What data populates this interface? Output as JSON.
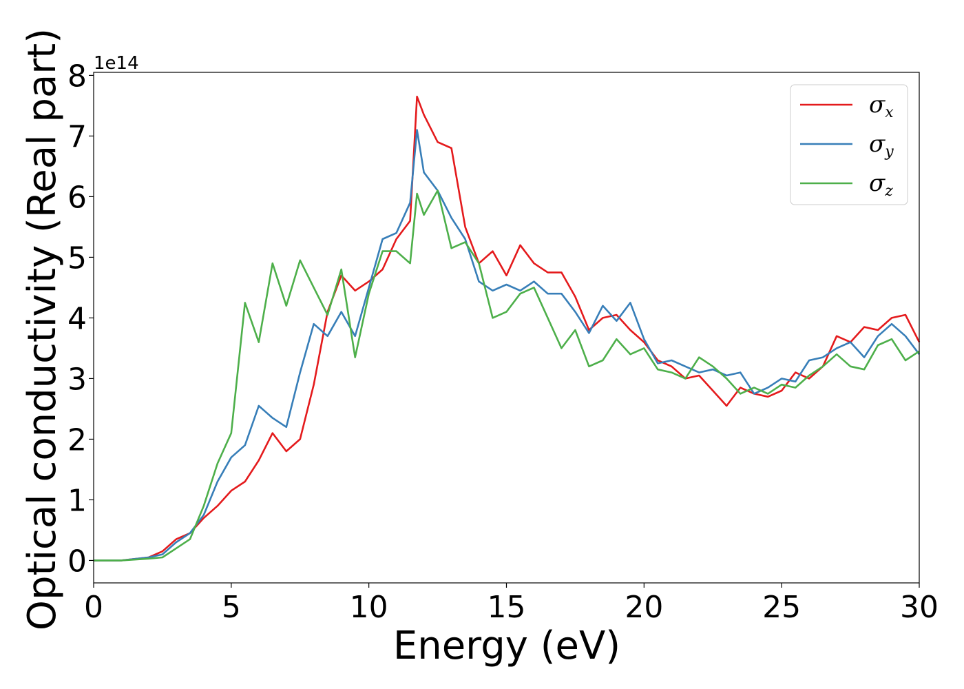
{
  "chart_data": {
    "type": "line",
    "xlabel": "Energy (eV)",
    "ylabel": "Optical conductivity (Real part)",
    "y_offset_label": "1e14",
    "xlim": [
      0,
      30
    ],
    "ylim": [
      -0.37,
      8.05
    ],
    "x_ticks": [
      0,
      5,
      10,
      15,
      20,
      25,
      30
    ],
    "y_ticks": [
      0,
      1,
      2,
      3,
      4,
      5,
      6,
      7,
      8
    ],
    "grid": false,
    "legend_position": "top-right",
    "x": [
      0,
      1,
      2,
      2.5,
      3,
      3.5,
      4,
      4.5,
      5,
      5.5,
      6,
      6.5,
      7,
      7.5,
      8,
      8.5,
      9,
      9.5,
      10,
      10.5,
      11,
      11.5,
      11.75,
      12,
      12.5,
      13,
      13.5,
      14,
      14.5,
      15,
      15.5,
      16,
      16.5,
      17,
      17.5,
      18,
      18.5,
      19,
      19.5,
      20,
      20.5,
      21,
      21.5,
      22,
      22.5,
      23,
      23.5,
      24,
      24.5,
      25,
      25.5,
      26,
      26.5,
      27,
      27.5,
      28,
      28.5,
      29,
      29.5,
      30
    ],
    "series": [
      {
        "name": "σx",
        "subscript": "x",
        "color": "#e41a1c",
        "values": [
          0,
          0,
          0.05,
          0.15,
          0.35,
          0.45,
          0.7,
          0.9,
          1.15,
          1.3,
          1.65,
          2.1,
          1.8,
          2.0,
          2.9,
          4.1,
          4.7,
          4.45,
          4.6,
          4.8,
          5.3,
          5.6,
          7.65,
          7.35,
          6.9,
          6.8,
          5.5,
          4.9,
          5.1,
          4.7,
          5.2,
          4.9,
          4.75,
          4.75,
          4.35,
          3.8,
          4.0,
          4.05,
          3.8,
          3.6,
          3.3,
          3.2,
          3.0,
          3.05,
          2.8,
          2.55,
          2.85,
          2.75,
          2.7,
          2.8,
          3.1,
          3.0,
          3.2,
          3.7,
          3.6,
          3.85,
          3.8,
          4.0,
          4.05,
          3.6
        ]
      },
      {
        "name": "σy",
        "subscript": "y",
        "color": "#377eb8",
        "values": [
          0,
          0,
          0.05,
          0.1,
          0.3,
          0.45,
          0.75,
          1.3,
          1.7,
          1.9,
          2.55,
          2.35,
          2.2,
          3.1,
          3.9,
          3.7,
          4.1,
          3.7,
          4.5,
          5.3,
          5.4,
          5.9,
          7.1,
          6.4,
          6.1,
          5.65,
          5.3,
          4.6,
          4.45,
          4.55,
          4.45,
          4.6,
          4.4,
          4.4,
          4.1,
          3.75,
          4.2,
          3.95,
          4.25,
          3.65,
          3.25,
          3.3,
          3.2,
          3.1,
          3.15,
          3.05,
          3.1,
          2.75,
          2.85,
          3.0,
          2.95,
          3.3,
          3.35,
          3.5,
          3.6,
          3.35,
          3.7,
          3.9,
          3.7,
          3.4
        ]
      },
      {
        "name": "σz",
        "subscript": "z",
        "color": "#4daf4a",
        "values": [
          0,
          0,
          0.03,
          0.05,
          0.2,
          0.35,
          0.9,
          1.6,
          2.1,
          4.25,
          3.6,
          4.9,
          4.2,
          4.95,
          4.5,
          4.05,
          4.8,
          3.35,
          4.4,
          5.1,
          5.1,
          4.9,
          6.05,
          5.7,
          6.1,
          5.15,
          5.25,
          4.9,
          4.0,
          4.1,
          4.4,
          4.5,
          4.0,
          3.5,
          3.8,
          3.2,
          3.3,
          3.65,
          3.4,
          3.5,
          3.15,
          3.1,
          3.0,
          3.35,
          3.2,
          3.0,
          2.75,
          2.85,
          2.75,
          2.9,
          2.85,
          3.05,
          3.2,
          3.4,
          3.2,
          3.15,
          3.55,
          3.65,
          3.3,
          3.45
        ]
      }
    ]
  }
}
